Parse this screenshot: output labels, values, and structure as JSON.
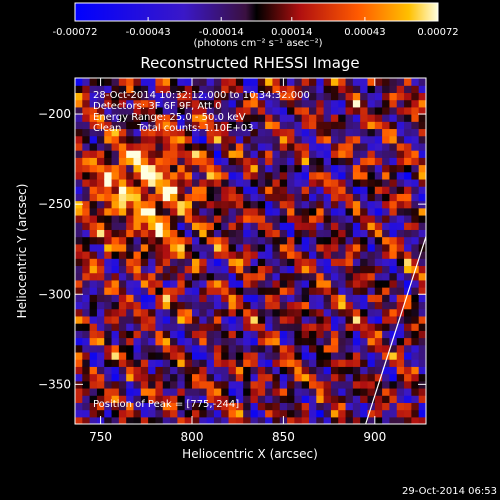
{
  "chart_data": {
    "type": "heatmap",
    "title": "Reconstructed RHESSI Image",
    "xlabel": "Heliocentric X (arcsec)",
    "ylabel": "Heliocentric Y (arcsec)",
    "xlim": [
      736,
      928
    ],
    "ylim": [
      -372,
      -180
    ],
    "x_ticks": [
      750,
      800,
      850,
      900
    ],
    "y_ticks": [
      -350,
      -300,
      -250,
      -200
    ],
    "colorbar": {
      "min": -0.00072,
      "max": 0.00072,
      "tick_labels": [
        "-0.00072",
        "-0.00043",
        "-0.00014",
        "0.00014",
        "0.00043",
        "0.00072"
      ],
      "unit_label": "(photons cm⁻² s⁻¹ asec⁻²)"
    },
    "annotations": [
      "28-Oct-2014 10:32:12.000 to 10:34:32.000",
      "Detectors: 3F 6F 9F, Att 0",
      "Energy Range: 25.0 - 50.0 keV",
      "Clean     Total counts: 1.10E+03"
    ],
    "peak_label": "Position of Peak = [775,-244]",
    "peak": [
      775,
      -244
    ],
    "limb_line": [
      [
        895,
        -372
      ],
      [
        928,
        -268
      ]
    ],
    "grid": false,
    "legend": "none"
  },
  "footer": {
    "timestamp": "29-Oct-2014 06:53"
  }
}
